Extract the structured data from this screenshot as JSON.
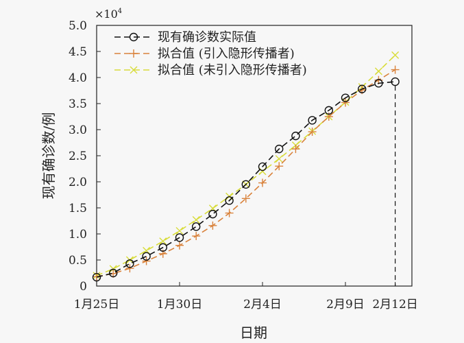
{
  "chart_data": {
    "type": "line",
    "xlabel": "日期",
    "ylabel": "现有确诊数/例",
    "y_multiplier": "×10^4",
    "y_multiplier_base": "×10",
    "y_multiplier_exp": "4",
    "ylim": [
      0,
      5.0
    ],
    "yticks": [
      "0",
      "0.5",
      "1.0",
      "1.5",
      "2.0",
      "2.5",
      "3.0",
      "3.5",
      "4.0",
      "4.5",
      "5.0"
    ],
    "xticks": [
      {
        "day": 0,
        "label": "1月25日"
      },
      {
        "day": 5,
        "label": "1月30日"
      },
      {
        "day": 10,
        "label": "2月4日"
      },
      {
        "day": 15,
        "label": "2月9日"
      },
      {
        "day": 18,
        "label": "2月12日"
      }
    ],
    "x_days": [
      0,
      1,
      2,
      3,
      4,
      5,
      6,
      7,
      8,
      9,
      10,
      11,
      12,
      13,
      14,
      15,
      16,
      17,
      18
    ],
    "legend_position": "top-left",
    "grid": false,
    "series": [
      {
        "name": "现有确诊数实际值",
        "color": "#111111",
        "marker": "circle",
        "values": [
          0.17,
          0.25,
          0.43,
          0.57,
          0.74,
          0.93,
          1.14,
          1.38,
          1.64,
          1.95,
          2.29,
          2.63,
          2.88,
          3.18,
          3.37,
          3.61,
          3.78,
          3.89,
          3.92
        ]
      },
      {
        "name": "拟合值 (引入隐形传播者)",
        "color": "#d9823b",
        "marker": "plus",
        "values": [
          0.18,
          0.24,
          0.34,
          0.48,
          0.62,
          0.78,
          0.96,
          1.16,
          1.4,
          1.68,
          1.98,
          2.3,
          2.63,
          2.96,
          3.25,
          3.52,
          3.76,
          3.95,
          4.15
        ]
      },
      {
        "name": "拟合值 (未引入隐形传播者)",
        "color": "#d8dc3a",
        "marker": "x",
        "values": [
          0.2,
          0.33,
          0.5,
          0.68,
          0.86,
          1.06,
          1.27,
          1.49,
          1.72,
          1.95,
          2.2,
          2.44,
          2.7,
          2.97,
          3.25,
          3.53,
          3.82,
          4.12,
          4.43
        ]
      }
    ]
  }
}
